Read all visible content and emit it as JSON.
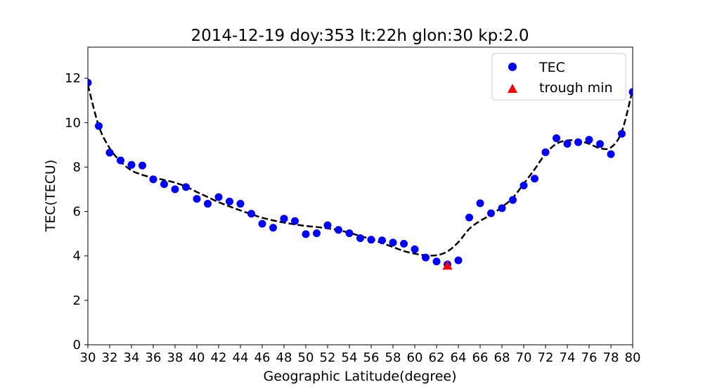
{
  "chart_data": {
    "type": "scatter",
    "title": "2014-12-19  doy:353  lt:22h  glon:30  kp:2.0",
    "xlabel": "Geographic Latitude(degree)",
    "ylabel": "TEC(TECU)",
    "xlim": [
      30,
      80
    ],
    "ylim": [
      0,
      13.4
    ],
    "xticks": [
      30,
      32,
      34,
      36,
      38,
      40,
      42,
      44,
      46,
      48,
      50,
      52,
      54,
      56,
      58,
      60,
      62,
      64,
      66,
      68,
      70,
      72,
      74,
      76,
      78,
      80
    ],
    "yticks": [
      0,
      2,
      4,
      6,
      8,
      10,
      12
    ],
    "grid": false,
    "legend_position": "top-right",
    "legend": [
      "TEC",
      "trough min"
    ],
    "colors": {
      "tec": "#0000ff",
      "trough": "#ff0000",
      "fit": "#000000"
    },
    "series": [
      {
        "name": "TEC",
        "marker": "circle",
        "x": [
          30,
          31,
          32,
          33,
          34,
          35,
          36,
          37,
          38,
          39,
          40,
          41,
          42,
          43,
          44,
          45,
          46,
          47,
          48,
          49,
          50,
          51,
          52,
          53,
          54,
          55,
          56,
          57,
          58,
          59,
          60,
          61,
          62,
          63,
          64,
          65,
          66,
          67,
          68,
          69,
          70,
          71,
          72,
          73,
          74,
          75,
          76,
          77,
          78,
          79,
          80
        ],
        "y": [
          11.8,
          9.85,
          8.65,
          8.3,
          8.1,
          8.07,
          7.45,
          7.23,
          7.0,
          7.1,
          6.57,
          6.35,
          6.65,
          6.45,
          6.35,
          5.9,
          5.45,
          5.27,
          5.68,
          5.57,
          4.98,
          5.02,
          5.38,
          5.17,
          5.02,
          4.8,
          4.73,
          4.7,
          4.6,
          4.55,
          4.3,
          3.93,
          3.75,
          3.62,
          3.8,
          5.73,
          6.37,
          5.92,
          6.15,
          6.52,
          7.17,
          7.48,
          8.67,
          9.3,
          9.05,
          9.12,
          9.23,
          9.04,
          8.58,
          9.5,
          11.38
        ]
      },
      {
        "name": "trough min",
        "marker": "triangle",
        "x": [
          63
        ],
        "y": [
          3.57
        ]
      },
      {
        "marker": "dashed-line",
        "x": [
          30,
          31,
          32,
          33,
          34,
          35,
          36,
          37,
          38,
          39,
          40,
          41,
          42,
          43,
          44,
          45,
          46,
          47,
          48,
          49,
          50,
          51,
          52,
          53,
          54,
          55,
          56,
          57,
          58,
          59,
          60,
          61,
          62,
          63,
          64,
          65,
          66,
          67,
          68,
          69,
          70,
          71,
          72,
          73,
          74,
          75,
          76,
          77,
          78,
          79,
          80
        ],
        "y": [
          11.7,
          9.85,
          8.85,
          8.25,
          7.85,
          7.65,
          7.52,
          7.42,
          7.3,
          7.12,
          6.88,
          6.65,
          6.42,
          6.23,
          6.05,
          5.88,
          5.72,
          5.6,
          5.5,
          5.42,
          5.35,
          5.3,
          5.24,
          5.16,
          5.04,
          4.9,
          4.75,
          4.58,
          4.4,
          4.22,
          4.1,
          4.03,
          4.03,
          4.2,
          4.62,
          5.22,
          5.58,
          5.85,
          6.2,
          6.62,
          7.25,
          7.9,
          8.6,
          9.05,
          9.2,
          9.18,
          9.05,
          8.85,
          8.88,
          9.6,
          11.5
        ]
      }
    ]
  }
}
